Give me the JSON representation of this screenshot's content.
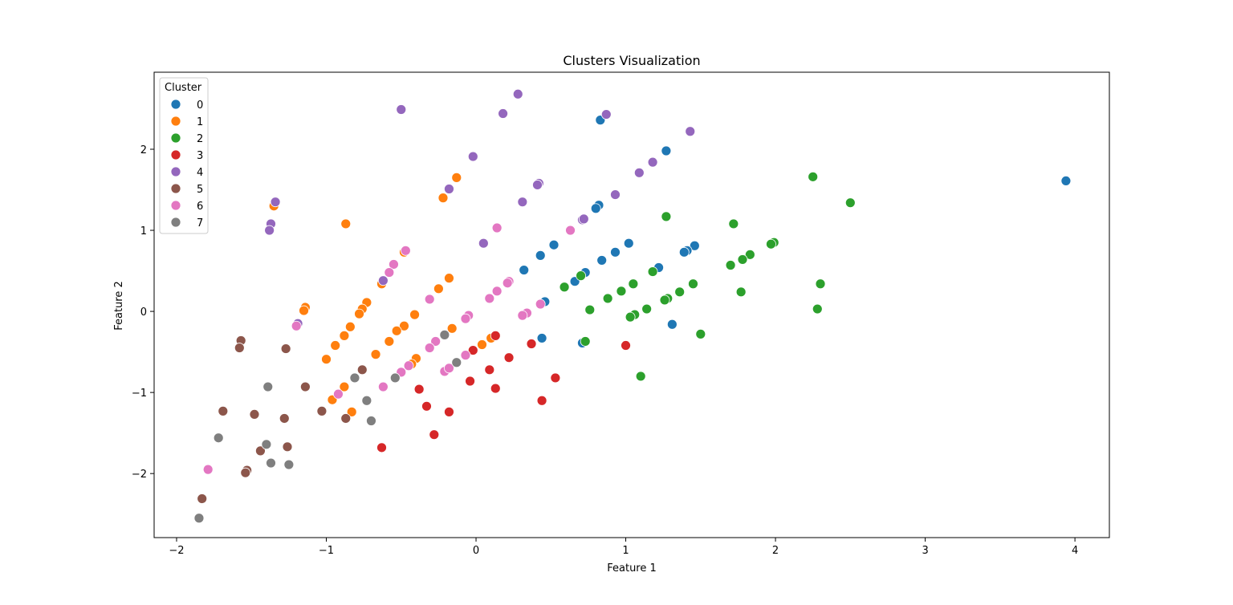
{
  "chart_data": {
    "type": "scatter",
    "title": "Clusters Visualization",
    "xlabel": "Feature 1",
    "ylabel": "Feature 2",
    "xlim": [
      -2.15,
      4.23
    ],
    "ylim": [
      -2.79,
      2.95
    ],
    "xticks": [
      -2,
      -1,
      0,
      1,
      2,
      3,
      4
    ],
    "yticks": [
      -2,
      -1,
      0,
      1,
      2
    ],
    "grid": false,
    "legend": {
      "title": "Cluster",
      "placement": "top-left"
    },
    "series": [
      {
        "name": "0",
        "color": "#1f77b4",
        "points": [
          [
            0.83,
            2.36
          ],
          [
            1.27,
            1.98
          ],
          [
            3.94,
            1.61
          ],
          [
            0.82,
            1.31
          ],
          [
            0.8,
            1.27
          ],
          [
            1.02,
            0.84
          ],
          [
            1.46,
            0.81
          ],
          [
            1.41,
            0.75
          ],
          [
            1.39,
            0.73
          ],
          [
            0.93,
            0.73
          ],
          [
            0.84,
            0.63
          ],
          [
            0.52,
            0.82
          ],
          [
            0.43,
            0.69
          ],
          [
            0.32,
            0.51
          ],
          [
            1.22,
            0.54
          ],
          [
            0.73,
            0.48
          ],
          [
            0.66,
            0.37
          ],
          [
            0.46,
            0.12
          ],
          [
            1.31,
            -0.16
          ],
          [
            0.44,
            -0.33
          ],
          [
            0.71,
            -0.39
          ]
        ]
      },
      {
        "name": "1",
        "color": "#ff7f0e",
        "points": [
          [
            -1.35,
            1.3
          ],
          [
            -0.87,
            1.08
          ],
          [
            -0.13,
            1.65
          ],
          [
            -0.22,
            1.4
          ],
          [
            -0.48,
            0.73
          ],
          [
            -0.63,
            0.34
          ],
          [
            -0.18,
            0.41
          ],
          [
            -0.25,
            0.28
          ],
          [
            -0.73,
            0.11
          ],
          [
            -1.14,
            0.05
          ],
          [
            -1.15,
            0.01
          ],
          [
            -0.76,
            0.03
          ],
          [
            -0.78,
            -0.03
          ],
          [
            -0.41,
            -0.04
          ],
          [
            -0.48,
            -0.18
          ],
          [
            -0.84,
            -0.19
          ],
          [
            -0.53,
            -0.24
          ],
          [
            -0.88,
            -0.3
          ],
          [
            -0.16,
            -0.21
          ],
          [
            -0.58,
            -0.37
          ],
          [
            -0.94,
            -0.42
          ],
          [
            0.1,
            -0.33
          ],
          [
            0.04,
            -0.41
          ],
          [
            -0.67,
            -0.53
          ],
          [
            -0.4,
            -0.58
          ],
          [
            -1.0,
            -0.59
          ],
          [
            -0.43,
            -0.65
          ],
          [
            -0.88,
            -0.93
          ],
          [
            -0.96,
            -1.09
          ],
          [
            -0.83,
            -1.24
          ]
        ]
      },
      {
        "name": "2",
        "color": "#2ca02c",
        "points": [
          [
            2.25,
            1.66
          ],
          [
            2.5,
            1.34
          ],
          [
            1.27,
            1.17
          ],
          [
            1.72,
            1.08
          ],
          [
            1.99,
            0.85
          ],
          [
            1.97,
            0.83
          ],
          [
            1.83,
            0.7
          ],
          [
            1.78,
            0.64
          ],
          [
            1.7,
            0.57
          ],
          [
            1.18,
            0.49
          ],
          [
            0.7,
            0.44
          ],
          [
            1.45,
            0.34
          ],
          [
            2.3,
            0.34
          ],
          [
            1.05,
            0.34
          ],
          [
            0.59,
            0.3
          ],
          [
            0.97,
            0.25
          ],
          [
            1.36,
            0.24
          ],
          [
            1.77,
            0.24
          ],
          [
            0.88,
            0.16
          ],
          [
            1.28,
            0.16
          ],
          [
            1.26,
            0.14
          ],
          [
            0.76,
            0.02
          ],
          [
            1.14,
            0.03
          ],
          [
            2.28,
            0.03
          ],
          [
            1.06,
            -0.04
          ],
          [
            1.03,
            -0.07
          ],
          [
            1.5,
            -0.28
          ],
          [
            0.73,
            -0.37
          ],
          [
            1.1,
            -0.8
          ]
        ]
      },
      {
        "name": "3",
        "color": "#d62728",
        "points": [
          [
            0.13,
            -0.3
          ],
          [
            0.37,
            -0.4
          ],
          [
            1.0,
            -0.42
          ],
          [
            -0.02,
            -0.48
          ],
          [
            0.22,
            -0.57
          ],
          [
            0.09,
            -0.72
          ],
          [
            0.53,
            -0.82
          ],
          [
            -0.04,
            -0.86
          ],
          [
            0.13,
            -0.95
          ],
          [
            -0.38,
            -0.96
          ],
          [
            0.44,
            -1.1
          ],
          [
            -0.33,
            -1.17
          ],
          [
            -0.18,
            -1.24
          ],
          [
            -0.28,
            -1.52
          ],
          [
            -0.63,
            -1.68
          ]
        ]
      },
      {
        "name": "4",
        "color": "#9467bd",
        "points": [
          [
            0.28,
            2.68
          ],
          [
            -0.5,
            2.49
          ],
          [
            0.18,
            2.44
          ],
          [
            0.87,
            2.43
          ],
          [
            1.43,
            2.22
          ],
          [
            -0.02,
            1.91
          ],
          [
            1.18,
            1.84
          ],
          [
            1.09,
            1.71
          ],
          [
            0.42,
            1.58
          ],
          [
            0.41,
            1.56
          ],
          [
            -0.18,
            1.51
          ],
          [
            0.93,
            1.44
          ],
          [
            -1.34,
            1.35
          ],
          [
            0.31,
            1.35
          ],
          [
            0.71,
            1.13
          ],
          [
            0.72,
            1.14
          ],
          [
            -1.37,
            1.08
          ],
          [
            -1.38,
            1.0
          ],
          [
            0.05,
            0.84
          ],
          [
            -0.62,
            0.38
          ],
          [
            -1.19,
            -0.15
          ]
        ]
      },
      {
        "name": "5",
        "color": "#8c564b",
        "points": [
          [
            -1.57,
            -0.36
          ],
          [
            -1.58,
            -0.45
          ],
          [
            -1.27,
            -0.46
          ],
          [
            -0.76,
            -0.72
          ],
          [
            -1.14,
            -0.93
          ],
          [
            -1.03,
            -1.23
          ],
          [
            -1.69,
            -1.23
          ],
          [
            -1.48,
            -1.27
          ],
          [
            -1.28,
            -1.32
          ],
          [
            -0.87,
            -1.32
          ],
          [
            -1.26,
            -1.67
          ],
          [
            -1.44,
            -1.72
          ],
          [
            -1.53,
            -1.96
          ],
          [
            -1.54,
            -1.99
          ],
          [
            -1.83,
            -2.31
          ]
        ]
      },
      {
        "name": "6",
        "color": "#e377c2",
        "points": [
          [
            0.14,
            1.03
          ],
          [
            0.63,
            1.0
          ],
          [
            -0.47,
            0.75
          ],
          [
            -0.55,
            0.58
          ],
          [
            -0.58,
            0.48
          ],
          [
            0.22,
            0.37
          ],
          [
            0.21,
            0.35
          ],
          [
            0.43,
            0.09
          ],
          [
            0.14,
            0.25
          ],
          [
            0.09,
            0.16
          ],
          [
            -0.31,
            0.15
          ],
          [
            0.34,
            -0.02
          ],
          [
            0.31,
            -0.05
          ],
          [
            -0.05,
            -0.05
          ],
          [
            -0.07,
            -0.09
          ],
          [
            -0.27,
            -0.37
          ],
          [
            -0.31,
            -0.45
          ],
          [
            -0.07,
            -0.54
          ],
          [
            -0.45,
            -0.67
          ],
          [
            -0.5,
            -0.75
          ],
          [
            -0.21,
            -0.74
          ],
          [
            -0.18,
            -0.7
          ],
          [
            -0.62,
            -0.93
          ],
          [
            -0.92,
            -1.02
          ],
          [
            -1.79,
            -1.95
          ],
          [
            -1.2,
            -0.18
          ]
        ]
      },
      {
        "name": "7",
        "color": "#7f7f7f",
        "points": [
          [
            -0.21,
            -0.29
          ],
          [
            -0.13,
            -0.63
          ],
          [
            -0.54,
            -0.82
          ],
          [
            -0.81,
            -0.82
          ],
          [
            -1.39,
            -0.93
          ],
          [
            -0.73,
            -1.1
          ],
          [
            -0.7,
            -1.35
          ],
          [
            -1.72,
            -1.56
          ],
          [
            -1.4,
            -1.64
          ],
          [
            -1.37,
            -1.87
          ],
          [
            -1.25,
            -1.89
          ],
          [
            -1.85,
            -2.55
          ]
        ]
      }
    ]
  }
}
